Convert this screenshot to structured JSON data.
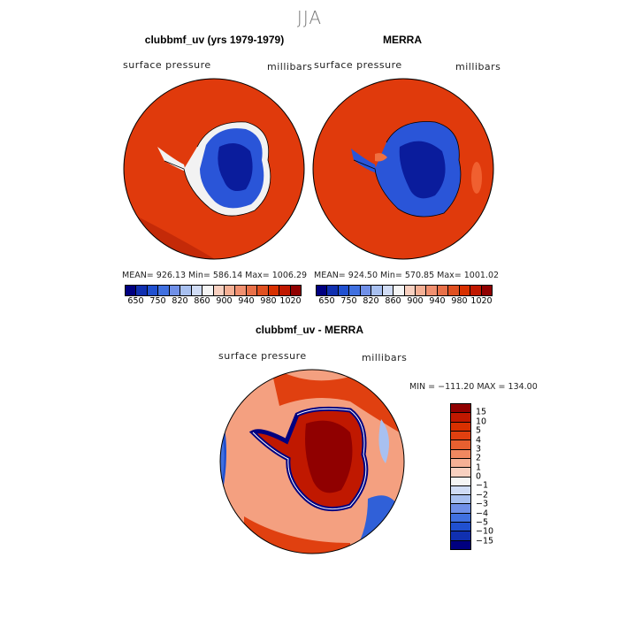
{
  "season": "JJA",
  "panels": {
    "model": {
      "title": "clubbmf_uv (yrs 1979-1979)",
      "variable": "surface pressure",
      "units": "millibars",
      "stats": "MEAN= 926.13   Min= 586.14   Max= 1006.29"
    },
    "obs": {
      "title": "MERRA",
      "variable": "surface pressure",
      "units": "millibars",
      "stats": "MEAN= 924.50   Min= 570.85   Max= 1001.02"
    },
    "diff": {
      "title": "clubbmf_uv - MERRA",
      "variable": "surface pressure",
      "units": "millibars",
      "minmax": "MIN = −111.20  MAX = 134.00"
    }
  },
  "colorbar_top": {
    "colors": [
      "#000080",
      "#1030b0",
      "#2050d0",
      "#4070e0",
      "#7090e8",
      "#a8c0f0",
      "#d0dcf5",
      "#f5f5f5",
      "#f8d0c0",
      "#f5b095",
      "#f09070",
      "#e87048",
      "#e05020",
      "#d83000",
      "#c01800",
      "#900000"
    ],
    "tick_labels": [
      "650",
      "750",
      "820",
      "860",
      "900",
      "940",
      "980",
      "1020"
    ]
  },
  "colorbar_diff": {
    "colors": [
      "#900000",
      "#c01800",
      "#d83000",
      "#e04010",
      "#e86030",
      "#f08860",
      "#f5b095",
      "#f8d0c0",
      "#f5f5f5",
      "#d0dcf5",
      "#a8c0f0",
      "#7090e8",
      "#4070e0",
      "#2050d0",
      "#1030b0",
      "#000080"
    ],
    "tick_labels": [
      "15",
      "10",
      "5",
      "4",
      "3",
      "2",
      "1",
      "0",
      "−1",
      "−2",
      "−3",
      "−4",
      "−5",
      "−10",
      "−15"
    ]
  }
}
